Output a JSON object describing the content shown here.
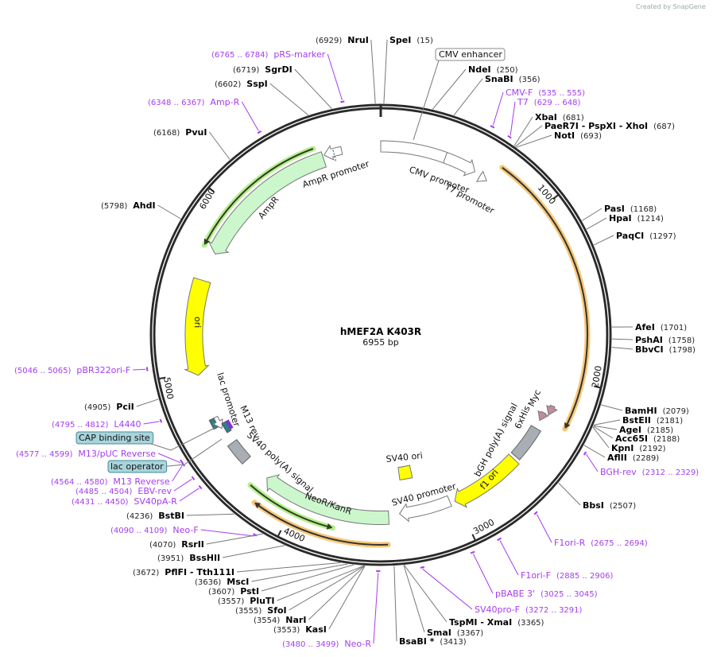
{
  "watermark": "Created by SnapGene",
  "plasmid": {
    "name": "hMEF2A K403R",
    "length": "6955 bp",
    "total_bp": 6955
  },
  "ticks": [
    "1000",
    "2000",
    "3000",
    "4000",
    "5000",
    "6000"
  ],
  "enzymes": [
    {
      "name": "NruI",
      "pos": "(6929)"
    },
    {
      "name": "SpeI",
      "pos": "(15)"
    },
    {
      "name": "NdeI",
      "pos": "(250)"
    },
    {
      "name": "SnaBI",
      "pos": "(356)"
    },
    {
      "name": "XbaI",
      "pos": "(681)"
    },
    {
      "name": "PaeR7I  - PspXI  - XhoI",
      "pos": "(687)"
    },
    {
      "name": "NotI",
      "pos": "(693)"
    },
    {
      "name": "PasI",
      "pos": "(1168)"
    },
    {
      "name": "HpaI",
      "pos": "(1214)"
    },
    {
      "name": "PaqCI",
      "pos": "(1297)"
    },
    {
      "name": "AfeI",
      "pos": "(1701)"
    },
    {
      "name": "PshAI",
      "pos": "(1758)"
    },
    {
      "name": "BbvCI",
      "pos": "(1798)"
    },
    {
      "name": "BamHI",
      "pos": "(2079)"
    },
    {
      "name": "BstEII",
      "pos": "(2181)"
    },
    {
      "name": "AgeI",
      "pos": "(2185)"
    },
    {
      "name": "Acc65I",
      "pos": "(2188)"
    },
    {
      "name": "KpnI",
      "pos": "(2192)"
    },
    {
      "name": "AflII",
      "pos": "(2289)"
    },
    {
      "name": "BbsI",
      "pos": "(2507)"
    },
    {
      "name": "TspMI  - XmaI",
      "pos": "(3365)"
    },
    {
      "name": "SmaI",
      "pos": "(3367)"
    },
    {
      "name": "BsaBI *",
      "pos": "(3413)"
    },
    {
      "name": "KasI",
      "pos": "(3553)"
    },
    {
      "name": "NarI",
      "pos": "(3554)"
    },
    {
      "name": "SfoI",
      "pos": "(3555)"
    },
    {
      "name": "PluTI",
      "pos": "(3557)"
    },
    {
      "name": "PstI",
      "pos": "(3607)"
    },
    {
      "name": "MscI",
      "pos": "(3636)"
    },
    {
      "name": "PflFI  - Tth111I",
      "pos": "(3672)"
    },
    {
      "name": "BssHII",
      "pos": "(3951)"
    },
    {
      "name": "RsrII",
      "pos": "(4070)"
    },
    {
      "name": "BstBI",
      "pos": "(4236)"
    },
    {
      "name": "PciI",
      "pos": "(4905)"
    },
    {
      "name": "AhdI",
      "pos": "(5798)"
    },
    {
      "name": "PvuI",
      "pos": "(6168)"
    },
    {
      "name": "SspI",
      "pos": "(6602)"
    },
    {
      "name": "SgrDI",
      "pos": "(6719)"
    }
  ],
  "primers": [
    {
      "name": "pRS-marker",
      "range": "(6765 .. 6784)"
    },
    {
      "name": "Amp-R",
      "range": "(6348 .. 6367)"
    },
    {
      "name": "CMV-F",
      "range": "(535 .. 555)"
    },
    {
      "name": "T7",
      "range": "(629 .. 648)"
    },
    {
      "name": "BGH-rev",
      "range": "(2312 .. 2329)"
    },
    {
      "name": "F1ori-R",
      "range": "(2675 .. 2694)"
    },
    {
      "name": "F1ori-F",
      "range": "(2885 .. 2906)"
    },
    {
      "name": "pBABE 3'",
      "range": "(3025 .. 3045)"
    },
    {
      "name": "SV40pro-F",
      "range": "(3272 .. 3291)"
    },
    {
      "name": "Neo-R",
      "range": "(3480 .. 3499)"
    },
    {
      "name": "Neo-F",
      "range": "(4090 .. 4109)"
    },
    {
      "name": "SV40pA-R",
      "range": "(4431 .. 4450)"
    },
    {
      "name": "EBV-rev",
      "range": "(4485 .. 4504)"
    },
    {
      "name": "M13 Reverse",
      "range": "(4564 .. 4580)"
    },
    {
      "name": "M13/pUC Reverse",
      "range": "(4577 .. 4599)"
    },
    {
      "name": "L4440",
      "range": "(4795 .. 4812)"
    },
    {
      "name": "pBR322ori-F",
      "range": "(5046 .. 5065)"
    }
  ],
  "features": {
    "cmv_enhancer": "CMV enhancer",
    "cmv_promoter": "CMV promoter",
    "t7_promoter": "T7 promoter",
    "myc": "Myc",
    "his": "6xHis",
    "bgh": "bGH poly(A) signal",
    "f1ori": "f1 ori",
    "sv40_promoter": "SV40 promoter",
    "sv40_ori": "SV40 ori",
    "neo": "NeoR/KanR",
    "sv40_polya": "SV40 poly(A) signal",
    "m13rev": "M13 rev",
    "lac_operator": "lac operator",
    "lac_promoter": "lac promoter",
    "cap": "CAP binding site",
    "ori": "ori",
    "ampr": "AmpR",
    "ampr_promoter": "AmpR promoter"
  },
  "colors": {
    "backbone": "#2a2a2a",
    "primer": "#a53cf0",
    "yellow": "#ffff00",
    "green_feature": "#ccf7cc",
    "gray_feature": "#a9adb4",
    "orange_orf": "#f7c878",
    "green_orf": "#b6ee8e",
    "teal": "#2e7f90",
    "pink": "#c48aa0",
    "callout": "#a8d5dc"
  }
}
